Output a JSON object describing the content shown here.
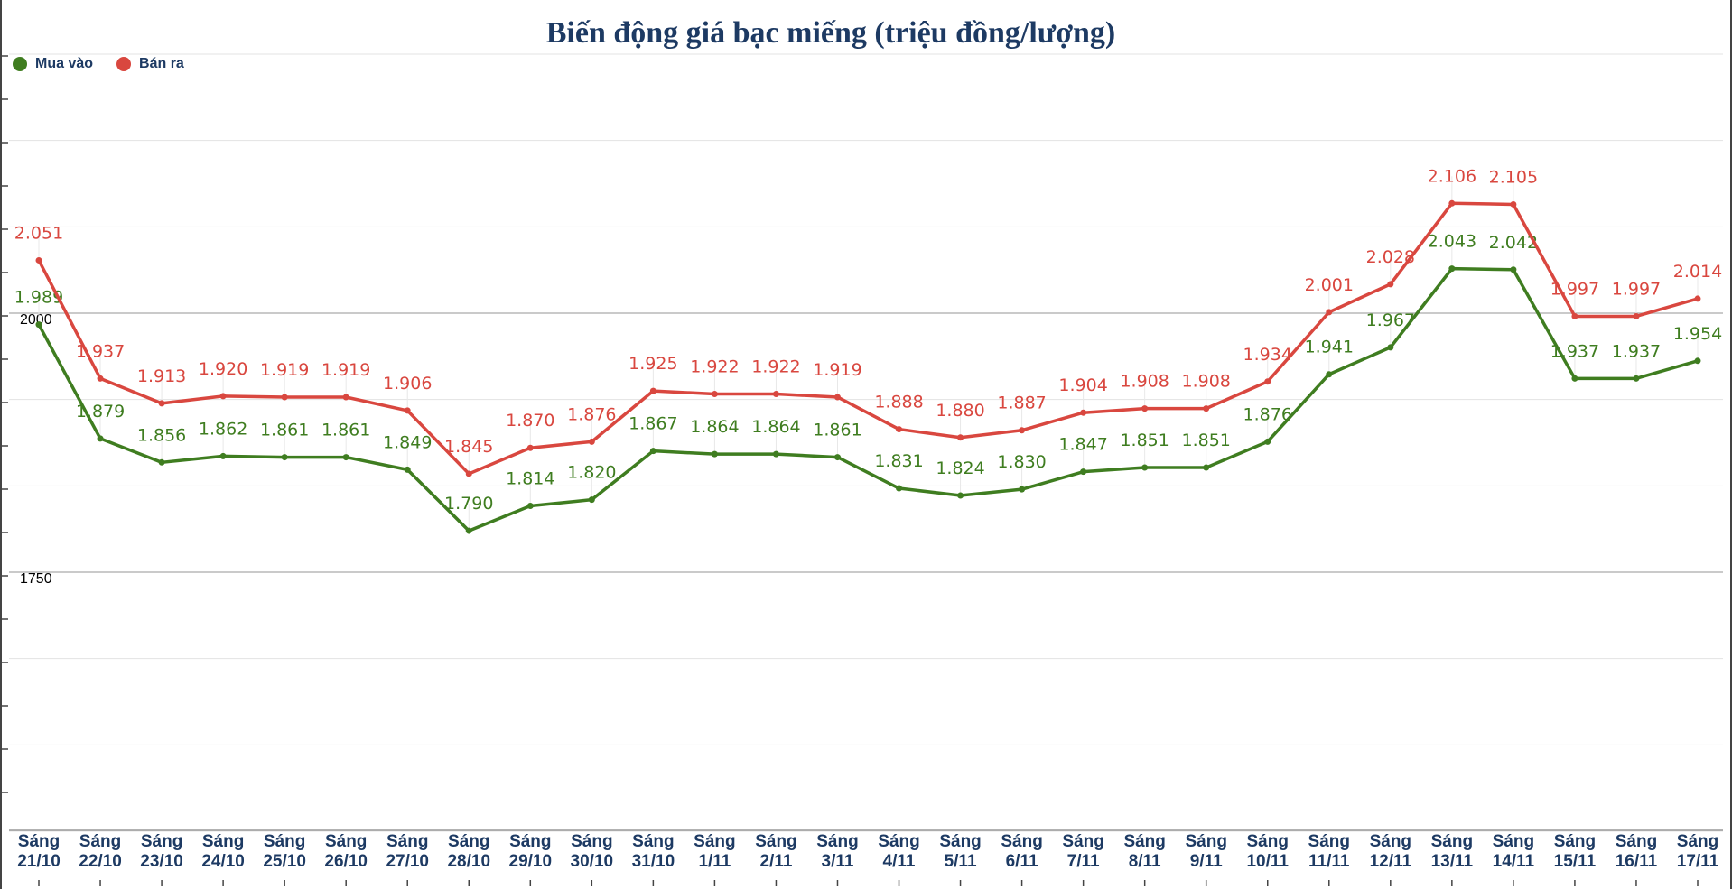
{
  "chart_data": {
    "type": "line",
    "title": "Biến động giá bạc miếng (triệu đồng/lượng)",
    "categories": [
      [
        "Sáng",
        "21/10"
      ],
      [
        "Sáng",
        "22/10"
      ],
      [
        "Sáng",
        "23/10"
      ],
      [
        "Sáng",
        "24/10"
      ],
      [
        "Sáng",
        "25/10"
      ],
      [
        "Sáng",
        "26/10"
      ],
      [
        "Sáng",
        "27/10"
      ],
      [
        "Sáng",
        "28/10"
      ],
      [
        "Sáng",
        "29/10"
      ],
      [
        "Sáng",
        "30/10"
      ],
      [
        "Sáng",
        "31/10"
      ],
      [
        "Sáng",
        "1/11"
      ],
      [
        "Sáng",
        "2/11"
      ],
      [
        "Sáng",
        "3/11"
      ],
      [
        "Sáng",
        "4/11"
      ],
      [
        "Sáng",
        "5/11"
      ],
      [
        "Sáng",
        "6/11"
      ],
      [
        "Sáng",
        "7/11"
      ],
      [
        "Sáng",
        "8/11"
      ],
      [
        "Sáng",
        "9/11"
      ],
      [
        "Sáng",
        "10/11"
      ],
      [
        "Sáng",
        "11/11"
      ],
      [
        "Sáng",
        "12/11"
      ],
      [
        "Sáng",
        "13/11"
      ],
      [
        "Sáng",
        "14/11"
      ],
      [
        "Sáng",
        "15/11"
      ],
      [
        "Sáng",
        "16/11"
      ],
      [
        "Sáng",
        "17/11"
      ]
    ],
    "series": [
      {
        "name": "Mua vào",
        "color": "#3f7d20",
        "values": [
          1989,
          1879,
          1856,
          1862,
          1861,
          1861,
          1849,
          1790,
          1814,
          1820,
          1867,
          1864,
          1864,
          1861,
          1831,
          1824,
          1830,
          1847,
          1851,
          1851,
          1876,
          1941,
          1967,
          2043,
          2042,
          1937,
          1937,
          1954
        ],
        "labels": [
          "1.989",
          "1.879",
          "1.856",
          "1.862",
          "1.861",
          "1.861",
          "1.849",
          "1.790",
          "1.814",
          "1.820",
          "1.867",
          "1.864",
          "1.864",
          "1.861",
          "1.831",
          "1.824",
          "1.830",
          "1.847",
          "1.851",
          "1.851",
          "1.876",
          "1.941",
          "1.967",
          "2.043",
          "2.042",
          "1.937",
          "1.937",
          "1.954"
        ]
      },
      {
        "name": "Bán ra",
        "color": "#d9473f",
        "values": [
          2051,
          1937,
          1913,
          1920,
          1919,
          1919,
          1906,
          1845,
          1870,
          1876,
          1925,
          1922,
          1922,
          1919,
          1888,
          1880,
          1887,
          1904,
          1908,
          1908,
          1934,
          2001,
          2028,
          2106,
          2105,
          1997,
          1997,
          2014
        ],
        "labels": [
          "2.051",
          "1.937",
          "1.913",
          "1.920",
          "1.919",
          "1.919",
          "1.906",
          "1.845",
          "1.870",
          "1.876",
          "1.925",
          "1.922",
          "1.922",
          "1.919",
          "1.888",
          "1.880",
          "1.887",
          "1.904",
          "1.908",
          "1.908",
          "1.934",
          "2.001",
          "2.028",
          "2.106",
          "2.105",
          "1.997",
          "1.997",
          "2.014"
        ]
      }
    ],
    "y_tick_labels": [
      {
        "value": 2000,
        "text": "2000"
      },
      {
        "value": 1750,
        "text": "1750"
      }
    ],
    "ylim": [
      1500,
      2300
    ],
    "gridlines_y": [
      1500,
      1583.3,
      1666.7,
      1750,
      1833.3,
      1916.7,
      2000,
      2083.3,
      2166.7,
      2250,
      2333.3
    ],
    "legend_position": "top-left",
    "grid": true
  }
}
